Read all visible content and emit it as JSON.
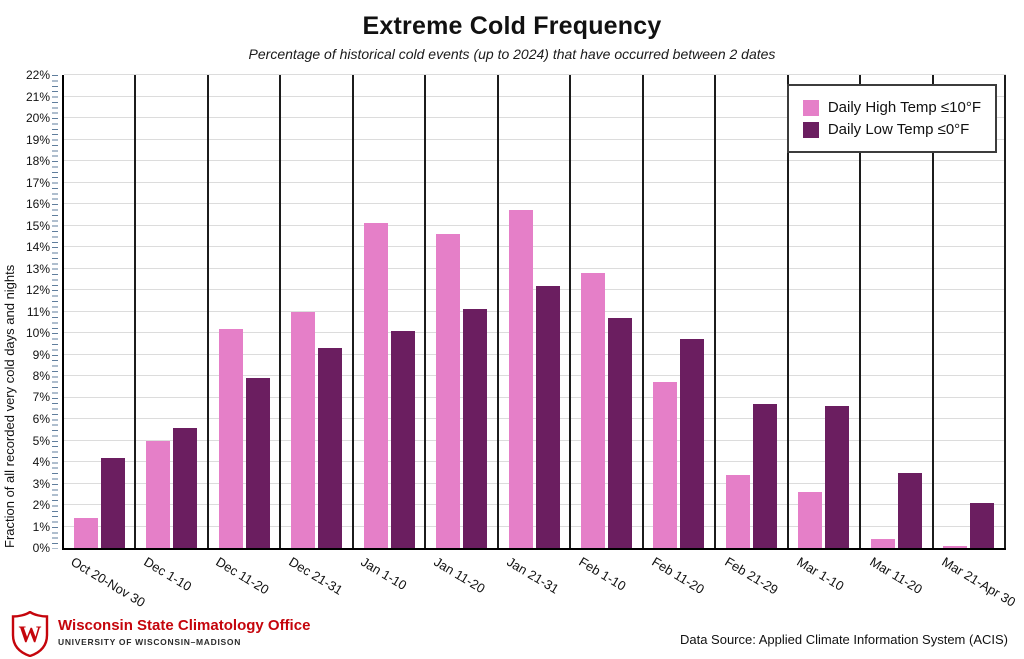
{
  "header": {
    "title": "Extreme Cold Frequency",
    "subtitle": "Percentage of historical cold events (up to 2024) that have occurred between 2 dates"
  },
  "chart_data": {
    "type": "bar",
    "categories": [
      "Oct 20-Nov 30",
      "Dec 1-10",
      "Dec 11-20",
      "Dec 21-31",
      "Jan 1-10",
      "Jan 11-20",
      "Jan 21-31",
      "Feb 1-10",
      "Feb 11-20",
      "Feb 21-29",
      "Mar 1-10",
      "Mar 11-20",
      "Mar 21-Apr 30"
    ],
    "series": [
      {
        "name": "Daily High Temp ≤10°F",
        "color": "#e57fc8",
        "values": [
          1.4,
          5.0,
          10.2,
          11.0,
          15.1,
          14.6,
          15.7,
          12.8,
          7.7,
          3.4,
          2.6,
          0.4,
          0.1
        ]
      },
      {
        "name": "Daily Low Temp ≤0°F",
        "color": "#6b1e60",
        "values": [
          4.2,
          5.6,
          7.9,
          9.3,
          10.1,
          11.1,
          12.2,
          10.7,
          9.7,
          6.7,
          6.6,
          3.5,
          2.1
        ]
      }
    ],
    "title": "Extreme Cold Frequency",
    "xlabel": "",
    "ylabel": "Fraction of all recorded very cold days and nights",
    "ylim": [
      0,
      22
    ],
    "ytick_step": 1,
    "ytick_suffix": "%",
    "grid": true,
    "legend_position": "top-right"
  },
  "footer": {
    "org_name": "Wisconsin State Climatology Office",
    "org_subname": "UNIVERSITY OF WISCONSIN–MADISON",
    "data_source": "Data Source: Applied Climate Information System (ACIS)"
  }
}
